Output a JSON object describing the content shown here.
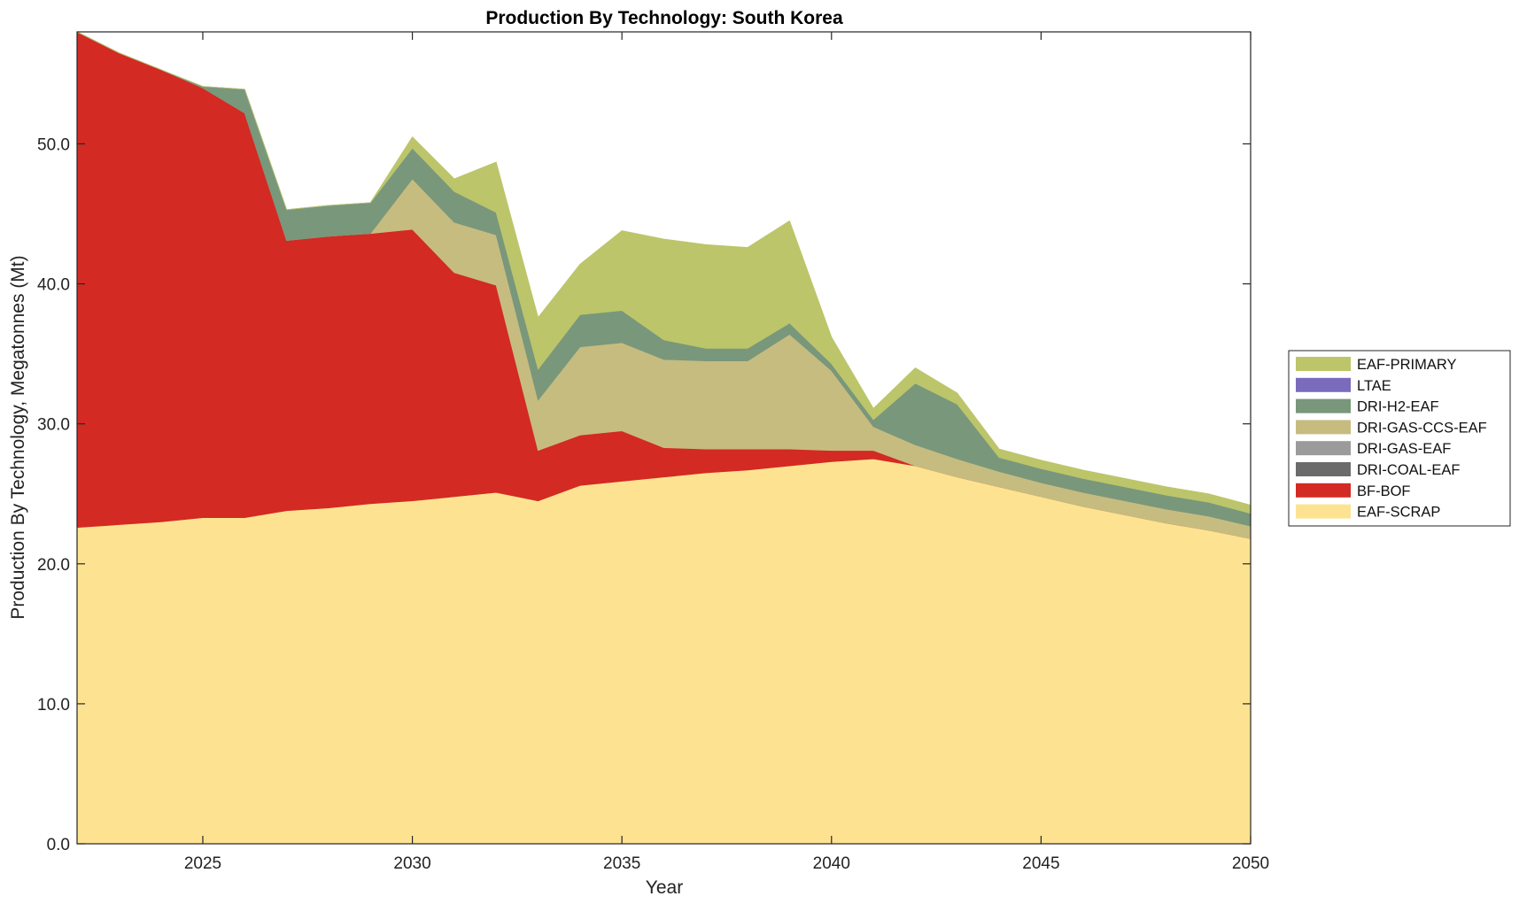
{
  "chart_data": {
    "type": "area",
    "stacked": true,
    "title": "Production By Technology: South Korea",
    "xlabel": "Year",
    "ylabel": "Production By Technology, Megatonnes (Mt)",
    "xlim": [
      2022,
      2050
    ],
    "ylim": [
      0,
      58
    ],
    "xticks": [
      2025,
      2030,
      2035,
      2040,
      2045,
      2050
    ],
    "yticks": [
      0,
      10,
      20,
      30,
      40,
      50
    ],
    "ytick_labels": [
      "0.0",
      "10.0",
      "20.0",
      "30.0",
      "40.0",
      "50.0"
    ],
    "grid": false,
    "legend_position": "right",
    "x": [
      2022,
      2023,
      2024,
      2025,
      2026,
      2027,
      2028,
      2029,
      2030,
      2031,
      2032,
      2033,
      2034,
      2035,
      2036,
      2037,
      2038,
      2039,
      2040,
      2041,
      2042,
      2043,
      2044,
      2045,
      2046,
      2047,
      2048,
      2049,
      2050
    ],
    "series": [
      {
        "name": "EAF-SCRAP",
        "color": "#fde391",
        "values": [
          22.6,
          22.8,
          23.0,
          23.3,
          23.3,
          23.8,
          24.0,
          24.3,
          24.5,
          24.8,
          25.1,
          24.5,
          25.6,
          25.9,
          26.2,
          26.5,
          26.7,
          27.0,
          27.3,
          27.5,
          27.0,
          26.2,
          25.5,
          24.8,
          24.1,
          23.5,
          22.9,
          22.4,
          21.8
        ]
      },
      {
        "name": "BF-BOF",
        "color": "#d32a23",
        "values": [
          35.4,
          33.7,
          32.3,
          30.7,
          28.9,
          19.3,
          19.4,
          19.3,
          19.4,
          16.0,
          14.8,
          3.6,
          3.6,
          3.6,
          2.1,
          1.7,
          1.5,
          1.2,
          0.8,
          0.6,
          0,
          0,
          0,
          0,
          0,
          0,
          0,
          0,
          0
        ]
      },
      {
        "name": "DRI-COAL-EAF",
        "color": "#6b6b6b",
        "values": [
          0,
          0,
          0,
          0,
          0,
          0,
          0,
          0,
          0,
          0,
          0,
          0,
          0,
          0,
          0,
          0,
          0,
          0,
          0,
          0,
          0,
          0,
          0,
          0,
          0,
          0,
          0,
          0,
          0
        ]
      },
      {
        "name": "DRI-GAS-EAF",
        "color": "#9b9b9b",
        "values": [
          0,
          0,
          0,
          0,
          0,
          0,
          0,
          0,
          0,
          0,
          0,
          0,
          0,
          0,
          0,
          0,
          0,
          0,
          0,
          0,
          0,
          0,
          0,
          0,
          0,
          0,
          0,
          0,
          0
        ]
      },
      {
        "name": "DRI-GAS-CCS-EAF",
        "color": "#c6bc80",
        "values": [
          0,
          0,
          0,
          0,
          0,
          0,
          0,
          0,
          3.6,
          3.6,
          3.6,
          3.6,
          6.3,
          6.3,
          6.3,
          6.3,
          6.3,
          8.2,
          5.7,
          1.7,
          1.5,
          1.3,
          1.1,
          1.0,
          1.0,
          1.0,
          1.0,
          1.0,
          0.9
        ]
      },
      {
        "name": "DRI-H2-EAF",
        "color": "#79977b",
        "values": [
          0,
          0,
          0,
          0.1,
          1.7,
          2.2,
          2.2,
          2.2,
          2.2,
          2.2,
          1.6,
          2.2,
          2.3,
          2.3,
          1.4,
          0.9,
          0.9,
          0.8,
          0.5,
          0.5,
          4.4,
          3.9,
          1.0,
          1.0,
          1.0,
          1.0,
          1.0,
          1.0,
          0.9
        ]
      },
      {
        "name": "LTAE",
        "color": "#7a6bbd",
        "values": [
          0,
          0,
          0,
          0,
          0,
          0,
          0,
          0,
          0,
          0,
          0,
          0,
          0,
          0,
          0,
          0,
          0,
          0,
          0,
          0,
          0,
          0,
          0,
          0,
          0,
          0,
          0,
          0,
          0
        ]
      },
      {
        "name": "EAF-PRIMARY",
        "color": "#bcc56a",
        "values": [
          0,
          0,
          0,
          0,
          0,
          0,
          0,
          0,
          0.8,
          0.9,
          3.6,
          3.7,
          3.6,
          5.7,
          7.2,
          7.4,
          7.2,
          7.3,
          1.9,
          0.8,
          1.1,
          0.8,
          0.6,
          0.6,
          0.6,
          0.6,
          0.6,
          0.6,
          0.6
        ]
      }
    ],
    "legend_order": [
      "EAF-PRIMARY",
      "LTAE",
      "DRI-H2-EAF",
      "DRI-GAS-CCS-EAF",
      "DRI-GAS-EAF",
      "DRI-COAL-EAF",
      "BF-BOF",
      "EAF-SCRAP"
    ]
  }
}
